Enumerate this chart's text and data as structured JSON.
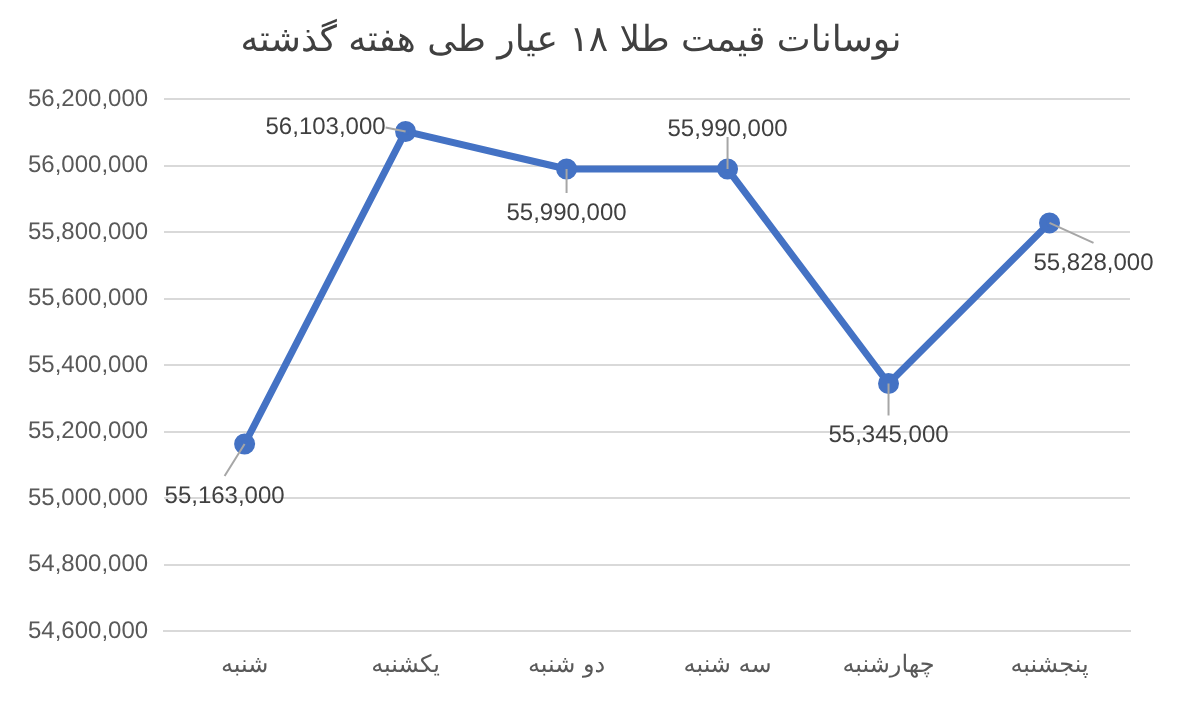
{
  "chart_data": {
    "type": "line",
    "title": "نوسانات قیمت طلا ۱۸ عیار طی هفته گذشته",
    "categories": [
      "شنبه",
      "یکشنبه",
      "دو شنبه",
      "سه شنبه",
      "چهارشنبه",
      "پنجشنبه"
    ],
    "series": [
      {
        "color": "#4472c4",
        "values": [
          55163000,
          56103000,
          55990000,
          55990000,
          55345000,
          55828000
        ],
        "value_labels": [
          "55,163,000",
          "56,103,000",
          "55,990,000",
          "55,990,000",
          "55,345,000",
          "55,828,000"
        ]
      }
    ],
    "ylim": [
      54600000,
      56200000
    ],
    "yticks": [
      {
        "value": 54600000,
        "label": "54,600,000"
      },
      {
        "value": 54800000,
        "label": "54,800,000"
      },
      {
        "value": 55000000,
        "label": "55,000,000"
      },
      {
        "value": 55200000,
        "label": "55,200,000"
      },
      {
        "value": 55400000,
        "label": "55,400,000"
      },
      {
        "value": 55600000,
        "label": "55,600,000"
      },
      {
        "value": 55800000,
        "label": "55,800,000"
      },
      {
        "value": 56000000,
        "label": "56,000,000"
      },
      {
        "value": 56200000,
        "label": "56,200,000"
      }
    ],
    "grid": "y",
    "legend": false,
    "marker": "circle",
    "line_style": "solid"
  }
}
